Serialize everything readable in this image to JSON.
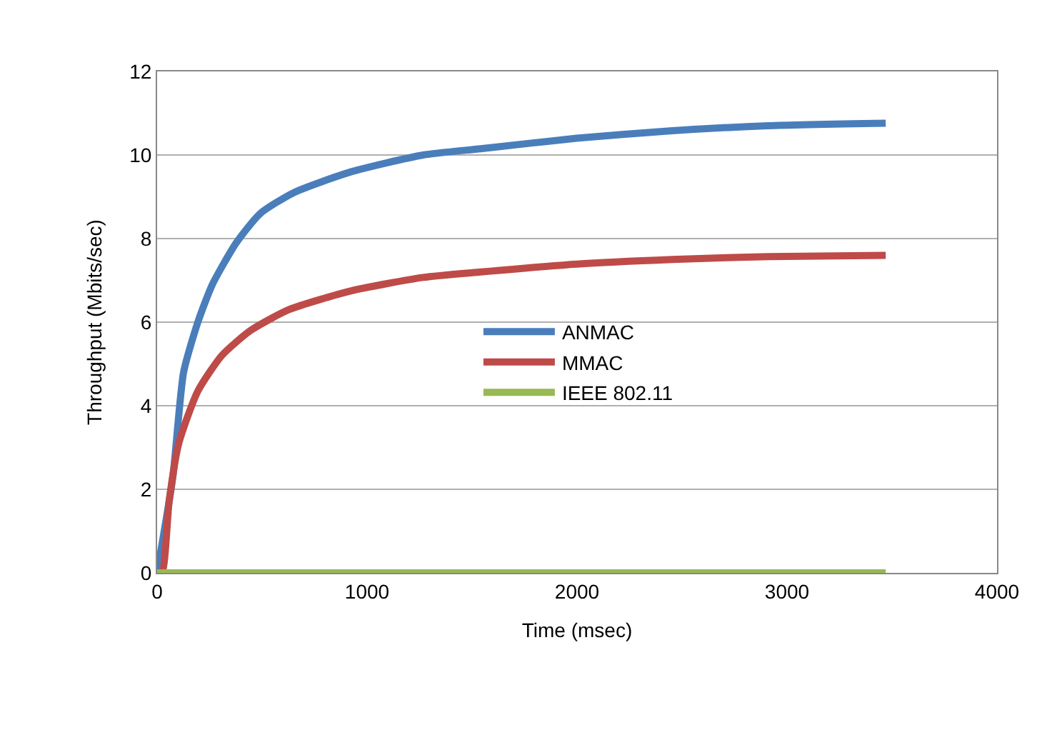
{
  "chart_data": {
    "type": "line",
    "xlabel": "Time (msec)",
    "ylabel": "Throughput (Mbits/sec)",
    "xlim": [
      0,
      4000
    ],
    "xticks": [
      0,
      1000,
      2000,
      3000,
      4000
    ],
    "ylim": [
      0,
      12
    ],
    "yticks": [
      0,
      2,
      4,
      6,
      8,
      10,
      12
    ],
    "grid": "y",
    "legend": "center",
    "marker": "none",
    "line_style": "solid",
    "series": [
      {
        "name": "ANMAC",
        "color": "#4a7ebb",
        "x": [
          0,
          75,
          126,
          194,
          263,
          377,
          491,
          651,
          925,
          1267,
          1541,
          1998,
          2454,
          2911,
          3470
        ],
        "values": [
          0,
          2.3,
          4.8,
          6.0,
          6.9,
          7.9,
          8.6,
          9.1,
          9.6,
          10.0,
          10.15,
          10.4,
          10.58,
          10.7,
          10.76
        ]
      },
      {
        "name": "MMAC",
        "color": "#be4b48",
        "x": [
          0,
          23,
          57,
          103,
          194,
          308,
          445,
          628,
          925,
          1267,
          1541,
          1998,
          2454,
          2911,
          3470
        ],
        "values": [
          0,
          0,
          1.7,
          3.1,
          4.35,
          5.2,
          5.8,
          6.3,
          6.75,
          7.07,
          7.2,
          7.39,
          7.5,
          7.57,
          7.6
        ]
      },
      {
        "name": "IEEE 802.11",
        "color": "#98b954",
        "x": [
          0,
          3470
        ],
        "values": [
          0,
          0
        ]
      }
    ]
  }
}
